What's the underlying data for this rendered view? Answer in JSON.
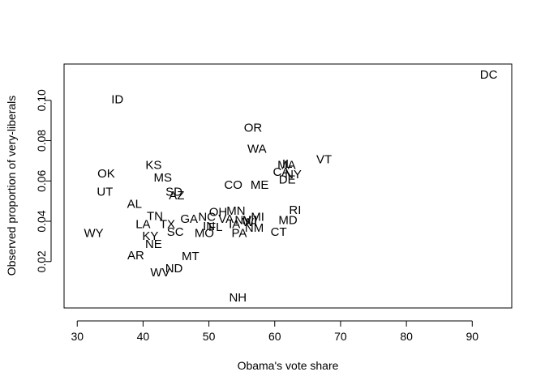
{
  "chart_data": {
    "type": "scatter",
    "title": "",
    "xlabel": "Obama's vote share",
    "ylabel": "Observed proportion of very-liberals",
    "xlim": [
      28,
      96
    ],
    "ylim": [
      -0.003,
      0.118
    ],
    "xticks": [
      30,
      40,
      50,
      60,
      70,
      80,
      90
    ],
    "yticks": [
      0.02,
      0.04,
      0.06,
      0.08,
      0.1
    ],
    "ytick_labels": [
      "0.02",
      "0.04",
      "0.06",
      "0.08",
      "0.10"
    ],
    "grid": false,
    "legend": "none",
    "marker": "text-labels",
    "points": [
      {
        "label": "DC",
        "x": 92.5,
        "y": 0.1125
      },
      {
        "label": "ID",
        "x": 36.1,
        "y": 0.1004
      },
      {
        "label": "OR",
        "x": 56.7,
        "y": 0.0862
      },
      {
        "label": "WA",
        "x": 57.3,
        "y": 0.0758
      },
      {
        "label": "VT",
        "x": 67.5,
        "y": 0.0706
      },
      {
        "label": "IL",
        "x": 61.9,
        "y": 0.0684
      },
      {
        "label": "MA",
        "x": 61.8,
        "y": 0.0677
      },
      {
        "label": "KS",
        "x": 41.6,
        "y": 0.0677
      },
      {
        "label": "CA",
        "x": 61.0,
        "y": 0.0643
      },
      {
        "label": "NY",
        "x": 62.8,
        "y": 0.0631
      },
      {
        "label": "OK",
        "x": 34.4,
        "y": 0.0635
      },
      {
        "label": "DE",
        "x": 61.9,
        "y": 0.0606
      },
      {
        "label": "MS",
        "x": 43.0,
        "y": 0.0615
      },
      {
        "label": "CO",
        "x": 53.7,
        "y": 0.058
      },
      {
        "label": "ME",
        "x": 57.7,
        "y": 0.058
      },
      {
        "label": "UT",
        "x": 34.2,
        "y": 0.0545
      },
      {
        "label": "SD",
        "x": 44.7,
        "y": 0.0545
      },
      {
        "label": "AZ",
        "x": 45.1,
        "y": 0.0527
      },
      {
        "label": "AL",
        "x": 38.7,
        "y": 0.0485
      },
      {
        "label": "RI",
        "x": 63.1,
        "y": 0.0455
      },
      {
        "label": "MN",
        "x": 54.1,
        "y": 0.045
      },
      {
        "label": "OH",
        "x": 51.4,
        "y": 0.0445
      },
      {
        "label": "TN",
        "x": 41.8,
        "y": 0.0425
      },
      {
        "label": "NC",
        "x": 49.7,
        "y": 0.042
      },
      {
        "label": "MI",
        "x": 57.4,
        "y": 0.042
      },
      {
        "label": "GA",
        "x": 47.0,
        "y": 0.041
      },
      {
        "label": "VA",
        "x": 52.6,
        "y": 0.041
      },
      {
        "label": "NV",
        "x": 55.2,
        "y": 0.0405
      },
      {
        "label": "NJ",
        "x": 56.2,
        "y": 0.0405
      },
      {
        "label": "MD",
        "x": 62.0,
        "y": 0.0405
      },
      {
        "label": "WI",
        "x": 56.2,
        "y": 0.0395
      },
      {
        "label": "LA",
        "x": 40.0,
        "y": 0.0385
      },
      {
        "label": "TX",
        "x": 43.7,
        "y": 0.0385
      },
      {
        "label": "IA",
        "x": 53.9,
        "y": 0.0385
      },
      {
        "label": "IN",
        "x": 50.0,
        "y": 0.0375
      },
      {
        "label": "FL",
        "x": 51.0,
        "y": 0.037
      },
      {
        "label": "NM",
        "x": 56.9,
        "y": 0.0365
      },
      {
        "label": "CT",
        "x": 60.6,
        "y": 0.0345
      },
      {
        "label": "WY",
        "x": 32.5,
        "y": 0.034
      },
      {
        "label": "SC",
        "x": 44.9,
        "y": 0.0345
      },
      {
        "label": "MO",
        "x": 49.3,
        "y": 0.034
      },
      {
        "label": "PA",
        "x": 54.6,
        "y": 0.034
      },
      {
        "label": "KY",
        "x": 41.1,
        "y": 0.0325
      },
      {
        "label": "NE",
        "x": 41.6,
        "y": 0.0285
      },
      {
        "label": "MT",
        "x": 47.2,
        "y": 0.0225
      },
      {
        "label": "AR",
        "x": 38.9,
        "y": 0.023
      },
      {
        "label": "ND",
        "x": 44.7,
        "y": 0.0165
      },
      {
        "label": "WV",
        "x": 42.6,
        "y": 0.0145
      },
      {
        "label": "NH",
        "x": 54.4,
        "y": 0.002
      }
    ]
  }
}
